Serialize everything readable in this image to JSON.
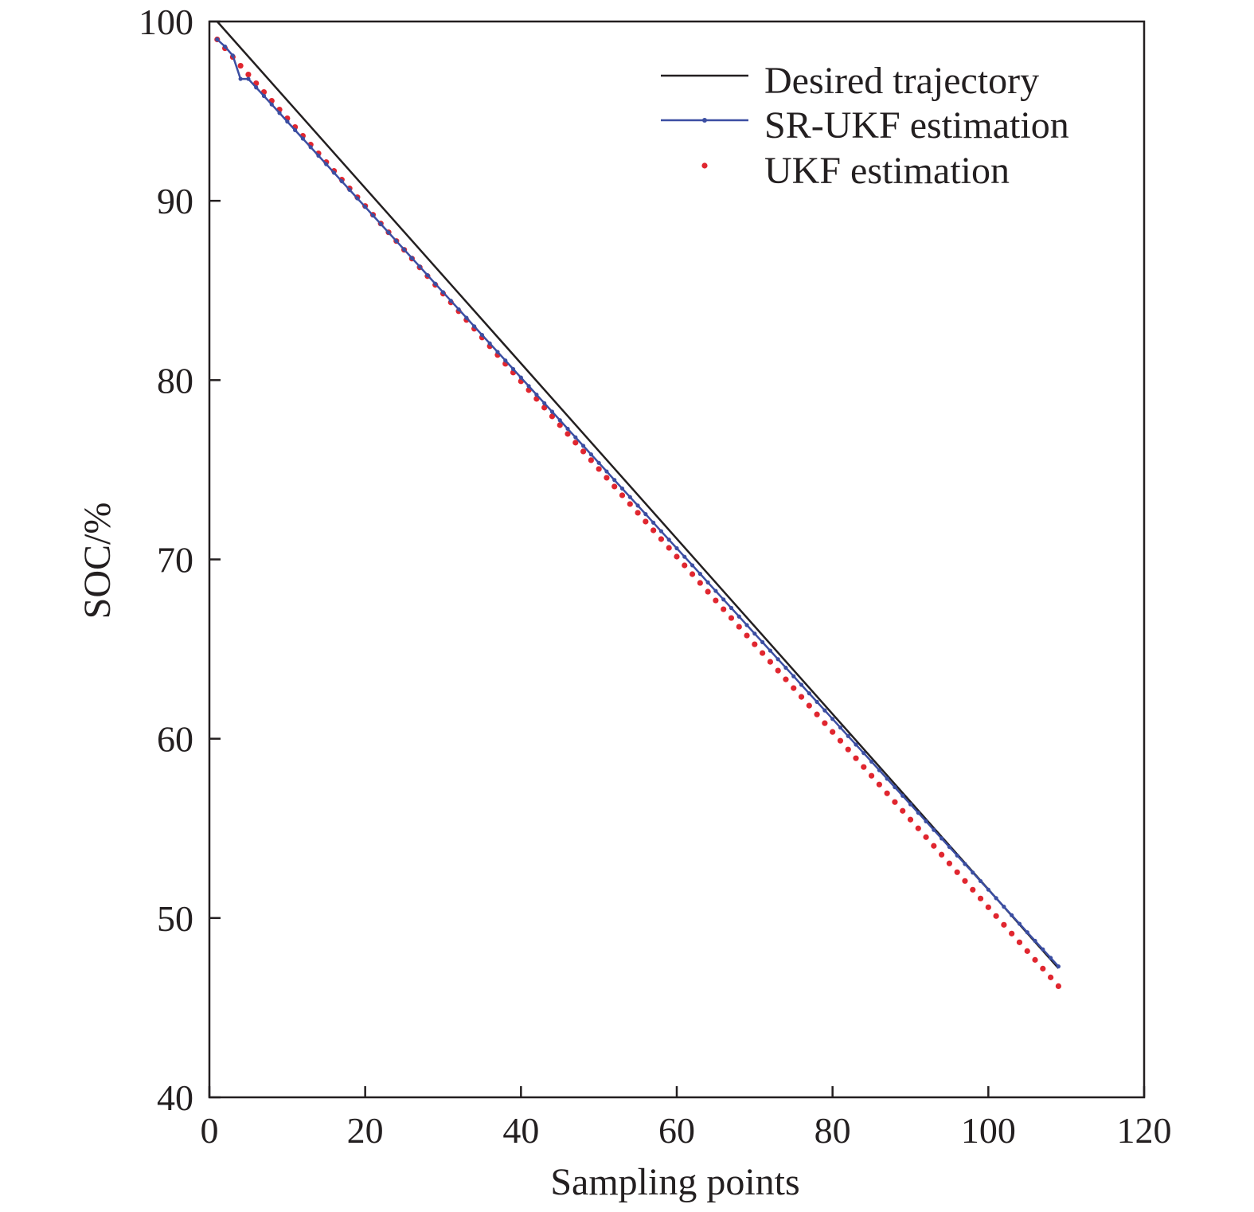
{
  "chart_data": {
    "type": "line",
    "title": "",
    "xlabel": "Sampling points",
    "ylabel": "SOC/%",
    "xlim": [
      0,
      120
    ],
    "ylim": [
      40,
      100
    ],
    "xticks": [
      0,
      20,
      40,
      60,
      80,
      100,
      120
    ],
    "yticks": [
      40,
      50,
      60,
      70,
      80,
      90,
      100
    ],
    "grid": false,
    "legend_position": "top-right",
    "x": {
      "start": 1,
      "end": 109,
      "step": 1
    },
    "series": [
      {
        "name": "Desired trajectory",
        "style": "solid line",
        "color": "#231f20",
        "x": [
          1,
          109
        ],
        "values": [
          100,
          47.2
        ]
      },
      {
        "name": "SR-UKF estimation",
        "style": "line with small circle markers",
        "color": "#3b4ea2",
        "x": [
          1,
          2,
          3,
          4,
          5,
          109
        ],
        "values": [
          99.0,
          98.6,
          98.1,
          96.8,
          96.8,
          47.3
        ],
        "linear_from": 5
      },
      {
        "name": "UKF estimation",
        "style": "dotted markers",
        "color": "#e0262f",
        "x": [
          1,
          109
        ],
        "values": [
          99.0,
          46.2
        ]
      }
    ]
  }
}
